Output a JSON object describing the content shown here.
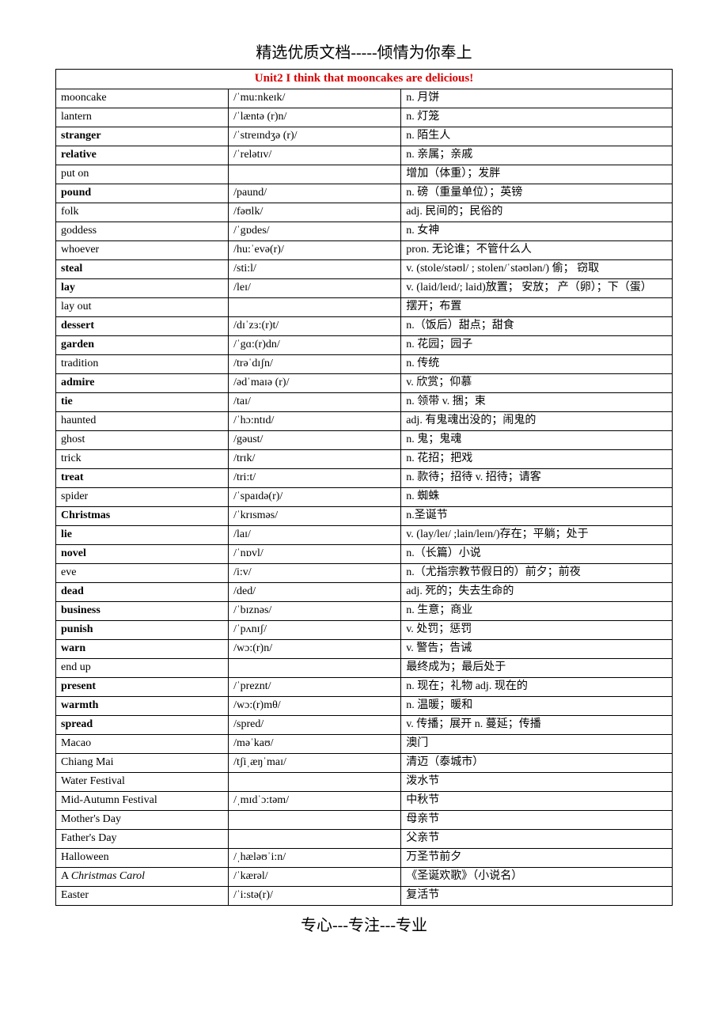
{
  "header": "精选优质文档-----倾情为你奉上",
  "footer": "专心---专注---专业",
  "title": "Unit2    I think that mooncakes are delicious!",
  "title_color": "#d90000",
  "border_color": "#000000",
  "text_color": "#000000",
  "background_color": "#ffffff",
  "font_size_body": 14,
  "font_size_header": 20,
  "columns": [
    "word",
    "phonetic",
    "definition"
  ],
  "column_widths": [
    0.28,
    0.28,
    0.44
  ],
  "rows": [
    {
      "word": "mooncake",
      "bold": false,
      "phonetic": "/ˈmu:nkeɪk/",
      "definition": "n. 月饼"
    },
    {
      "word": "lantern",
      "bold": false,
      "phonetic": "/ˈlæntə (r)n/",
      "definition": "n. 灯笼"
    },
    {
      "word": "stranger",
      "bold": true,
      "phonetic": "/ˈstreɪndʒə (r)/",
      "definition": "n. 陌生人"
    },
    {
      "word": "relative",
      "bold": true,
      "phonetic": "/ˈrelətɪv/",
      "definition": "n. 亲属；亲戚"
    },
    {
      "word": "put on",
      "bold": false,
      "phonetic": "",
      "definition": "增加（体重）；发胖"
    },
    {
      "word": "pound",
      "bold": true,
      "phonetic": "/paund/",
      "definition": "n. 磅（重量单位）；英镑"
    },
    {
      "word": "folk",
      "bold": false,
      "phonetic": "/fəʊlk/",
      "definition": "adj. 民间的；民俗的"
    },
    {
      "word": "goddess",
      "bold": false,
      "phonetic": "/ˈgɒdes/",
      "definition": "n. 女神"
    },
    {
      "word": "whoever",
      "bold": false,
      "phonetic": "/hu:ˈevə(r)/",
      "definition": "pron. 无论谁；不管什么人"
    },
    {
      "word": "steal",
      "bold": true,
      "phonetic": "/sti:l/",
      "definition": "v. (stole/stəʊl/ ; stolen/ˈstəʊlən/) 偷； 窃取"
    },
    {
      "word": "lay",
      "bold": true,
      "phonetic": "/leɪ/",
      "definition": "v. (laid/leɪd/; laid)放置； 安放； 产（卵）；下（蛋）"
    },
    {
      "word": "lay out",
      "bold": false,
      "phonetic": "",
      "definition": "摆开；布置"
    },
    {
      "word": "dessert",
      "bold": true,
      "phonetic": "/dɪˈzɜ:(r)t/",
      "definition": "n.（饭后）甜点；甜食"
    },
    {
      "word": "garden",
      "bold": true,
      "phonetic": "/ˈgɑ:(r)dn/",
      "definition": "n. 花园；园子"
    },
    {
      "word": "tradition",
      "bold": false,
      "phonetic": "/trəˈdɪʃn/",
      "definition": "n. 传统"
    },
    {
      "word": "admire",
      "bold": true,
      "phonetic": "/ədˈmaɪə (r)/",
      "definition": "v. 欣赏；仰慕"
    },
    {
      "word": "tie",
      "bold": true,
      "phonetic": "/taɪ/",
      "definition": "n.   领带 v. 捆；束"
    },
    {
      "word": "haunted",
      "bold": false,
      "phonetic": "/ˈhɔ:ntɪd/",
      "definition": "adj. 有鬼魂出没的；闹鬼的"
    },
    {
      "word": "ghost",
      "bold": false,
      "phonetic": "/gəust/",
      "definition": "n. 鬼；鬼魂"
    },
    {
      "word": "trick",
      "bold": false,
      "phonetic": "/trɪk/",
      "definition": "n. 花招；把戏"
    },
    {
      "word": "treat",
      "bold": true,
      "phonetic": "/tri:t/",
      "definition": "n. 款待；招待 v. 招待；请客"
    },
    {
      "word": "spider",
      "bold": false,
      "phonetic": "/ˈspaɪdə(r)/",
      "definition": "n. 蜘蛛"
    },
    {
      "word": "Christmas",
      "bold": true,
      "phonetic": "/ˈkrɪsməs/",
      "definition": "n.圣诞节"
    },
    {
      "word": "lie",
      "bold": true,
      "phonetic": "/laɪ/",
      "definition": "v. (lay/leɪ/ ;lain/leɪn/)存在；平躺；处于"
    },
    {
      "word": "novel",
      "bold": true,
      "phonetic": "/ˈnɒvl/",
      "definition": " n.（长篇）小说"
    },
    {
      "word": "eve",
      "bold": false,
      "phonetic": "/i:v/",
      "definition": "n.（尤指宗教节假日的）前夕；前夜"
    },
    {
      "word": "dead",
      "bold": true,
      "phonetic": "/ded/",
      "definition": "adj. 死的；失去生命的"
    },
    {
      "word": "business",
      "bold": true,
      "phonetic": "/ˈbɪznəs/",
      "definition": "n. 生意；商业"
    },
    {
      "word": "punish",
      "bold": true,
      "phonetic": "/ˈpʌnɪʃ/",
      "definition": "v.   处罚；惩罚"
    },
    {
      "word": "warn",
      "bold": true,
      "phonetic": "/wɔ:(r)n/",
      "definition": "v. 警告；告诫"
    },
    {
      "word": "end up",
      "bold": false,
      "phonetic": "",
      "definition": "最终成为；最后处于"
    },
    {
      "word": "present",
      "bold": true,
      "phonetic": "/ˈpreznt/",
      "definition": "n. 现在；礼物 adj. 现在的"
    },
    {
      "word": "warmth",
      "bold": true,
      "phonetic": "/wɔ:(r)mθ/",
      "definition": "n. 温暖；暖和"
    },
    {
      "word": "spread",
      "bold": true,
      "phonetic": "/spred/",
      "definition": "v.   传播；展开 n. 蔓延；传播"
    },
    {
      "word": "Macao",
      "bold": false,
      "phonetic": "/məˈkaʊ/",
      "definition": " 澳门"
    },
    {
      "word": "Chiang Mai",
      "bold": false,
      "phonetic": "/tʃiˌæŋˈmaɪ/",
      "definition": "清迈（泰城市）"
    },
    {
      "word": "Water Festival",
      "bold": false,
      "phonetic": "",
      "definition": "泼水节"
    },
    {
      "word": "Mid-Autumn Festival",
      "bold": false,
      "phonetic": "/ˌmɪdˈɔ:təm/",
      "definition": "中秋节"
    },
    {
      "word": "Mother's Day",
      "bold": false,
      "phonetic": "",
      "definition": "母亲节"
    },
    {
      "word": "Father's Day",
      "bold": false,
      "phonetic": "",
      "definition": "父亲节"
    },
    {
      "word": "Halloween",
      "bold": false,
      "phonetic": "/ˌhæləʊˈi:n/",
      "definition": "万圣节前夕"
    },
    {
      "word": "A Christmas Carol",
      "bold": false,
      "italic": true,
      "phonetic": "/ˈkærəl/",
      "definition": "《圣诞欢歌》（小说名）"
    },
    {
      "word": "Easter",
      "bold": false,
      "phonetic": "/ˈi:stə(r)/",
      "definition": "复活节"
    }
  ]
}
